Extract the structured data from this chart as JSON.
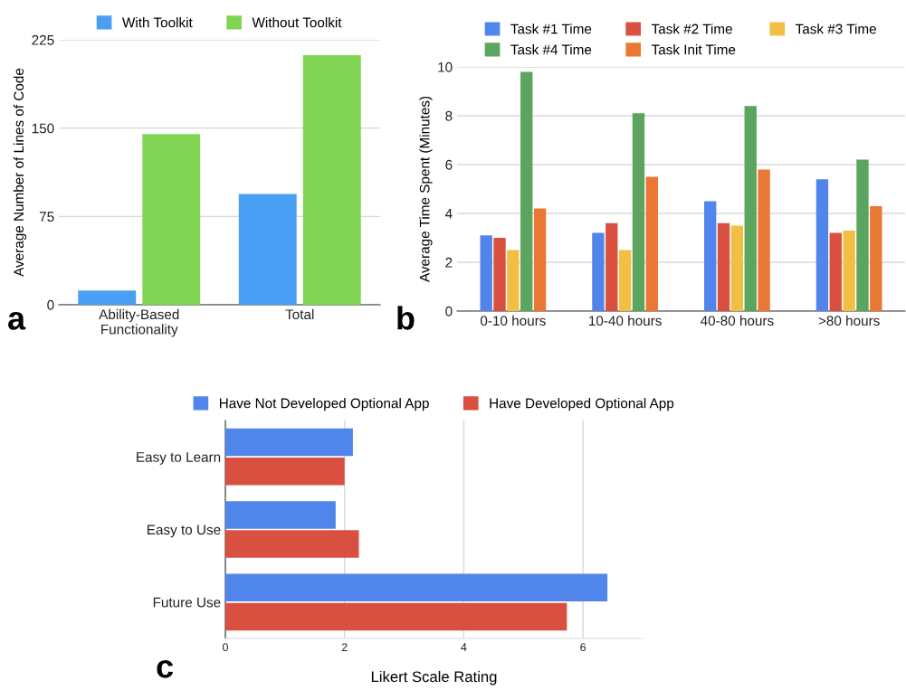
{
  "chart_data": [
    {
      "type": "bar",
      "ylabel": "Average Number of Lines of Code",
      "categories": [
        "Ability-Based\nFunctionality",
        "Total"
      ],
      "series": [
        {
          "name": "With Toolkit",
          "color": "#4a9ff5",
          "values": [
            12,
            94
          ]
        },
        {
          "name": "Without Toolkit",
          "color": "#82d454",
          "values": [
            145,
            212
          ]
        }
      ],
      "ylim": [
        0,
        225
      ],
      "yticks": [
        0,
        75,
        150,
        225
      ],
      "grid": "y",
      "legend": "top",
      "annotations": [
        "a"
      ]
    },
    {
      "type": "bar",
      "ylabel": "Average Time Spent (Minutes)",
      "categories": [
        "0-10 hours",
        "10-40 hours",
        "40-80 hours",
        ">80 hours"
      ],
      "series": [
        {
          "name": "Task #1 Time",
          "color": "#5085ec",
          "values": [
            3.1,
            3.2,
            4.5,
            5.4
          ]
        },
        {
          "name": "Task #2 Time",
          "color": "#d95040",
          "values": [
            3.0,
            3.6,
            3.6,
            3.2
          ]
        },
        {
          "name": "Task #3 Time",
          "color": "#f1bf42",
          "values": [
            2.5,
            2.5,
            3.5,
            3.3
          ]
        },
        {
          "name": "Task #4 Time",
          "color": "#5ba55e",
          "values": [
            9.8,
            8.1,
            8.4,
            6.2
          ]
        },
        {
          "name": "Task Init Time",
          "color": "#ea7734",
          "values": [
            4.2,
            5.5,
            5.8,
            4.3
          ]
        }
      ],
      "ylim": [
        0,
        10
      ],
      "yticks": [
        0,
        2,
        4,
        6,
        8,
        10
      ],
      "grid": "y",
      "legend": "top",
      "annotations": [
        "b"
      ]
    },
    {
      "type": "bar",
      "orientation": "horizontal",
      "xlabel": "Likert Scale Rating",
      "categories": [
        "Easy to Learn",
        "Easy to Use",
        "Future Use"
      ],
      "series": [
        {
          "name": "Have Not Developed Optional App",
          "color": "#5085ec",
          "values": [
            2.14,
            1.85,
            6.41
          ]
        },
        {
          "name": "Have Developed Optional App",
          "color": "#d95040",
          "values": [
            2.0,
            2.24,
            5.73
          ]
        }
      ],
      "xlim": [
        0,
        7
      ],
      "xticks": [
        0,
        2,
        4,
        6
      ],
      "grid": "x",
      "legend": "top",
      "annotations": [
        "c"
      ]
    }
  ]
}
